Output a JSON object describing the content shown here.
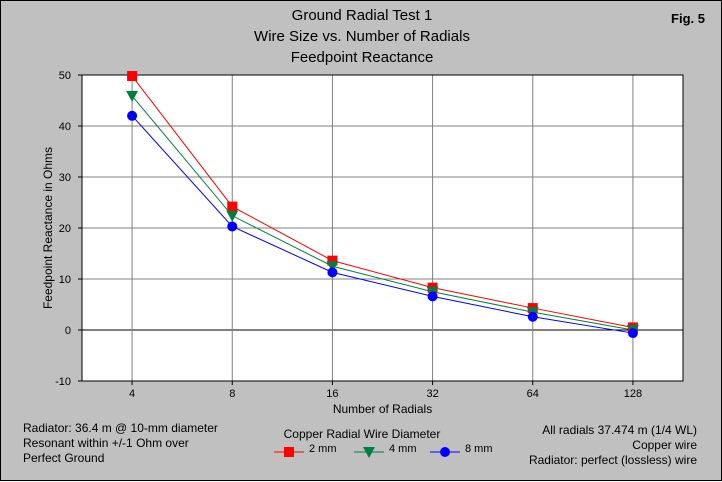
{
  "figure_label": "Fig. 5",
  "chart_data": {
    "type": "line",
    "title": "Ground Radial Test 1",
    "subtitle": "Wire Size vs. Number of Radials",
    "subtitle2": "Feedpoint Reactance",
    "xlabel": "Number of Radials",
    "ylabel": "Feedpoint Reactance in Ohms",
    "categories": [
      "4",
      "8",
      "16",
      "32",
      "64",
      "128"
    ],
    "ylim": [
      -10,
      50
    ],
    "yticks": [
      "50",
      "40",
      "30",
      "20",
      "10",
      "0",
      "-10"
    ],
    "grid": true,
    "legend_title": "Copper Radial Wire Diameter",
    "legend_position": "bottom-center",
    "series": [
      {
        "name": "2 mm",
        "color": "#ff0000",
        "marker": "square",
        "values": [
          49.8,
          24.2,
          13.6,
          8.3,
          4.3,
          0.5
        ]
      },
      {
        "name": "4 mm",
        "color": "#008040",
        "marker": "triangle-down",
        "values": [
          45.9,
          22.4,
          12.5,
          7.5,
          3.5,
          0.0
        ]
      },
      {
        "name": "8 mm",
        "color": "#0000ff",
        "marker": "circle",
        "values": [
          42.0,
          20.3,
          11.3,
          6.6,
          2.6,
          -0.6
        ]
      }
    ]
  },
  "notes_left": [
    "Radiator: 36.4 m @ 10-mm diameter",
    "Resonant within +/-1 Ohm over",
    "Perfect Ground"
  ],
  "notes_right": [
    "All radials 37.474 m (1/4 WL)",
    "Copper wire",
    "Radiator: perfect (lossless) wire"
  ]
}
